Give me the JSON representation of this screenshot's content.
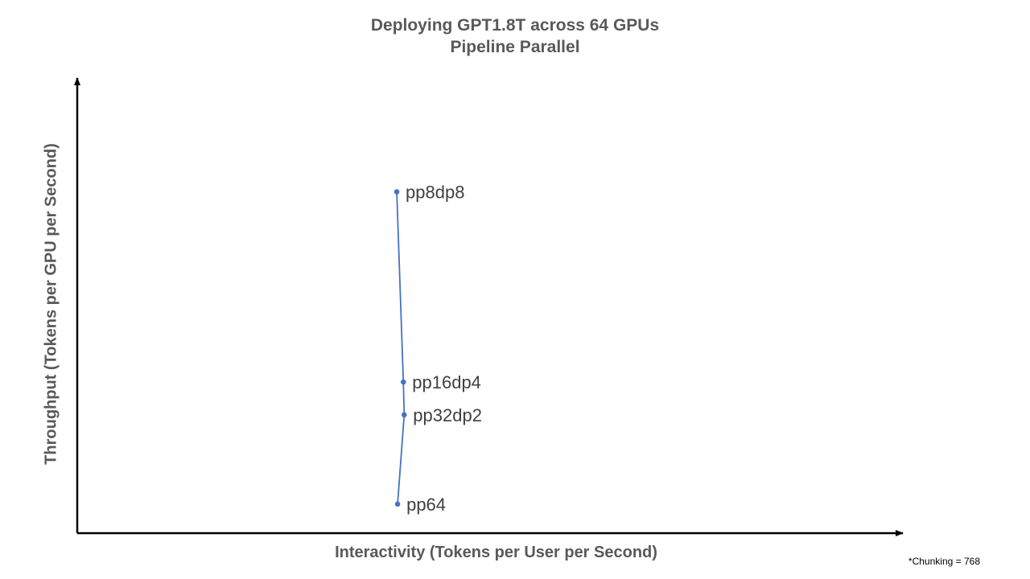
{
  "chart_data": {
    "type": "scatter",
    "title": "Deploying GPT1.8T across 64 GPUs",
    "subtitle": "Pipeline Parallel",
    "xlabel": "Interactivity (Tokens per User per Second)",
    "ylabel": "Throughput (Tokens per GPU per Second)",
    "xlim": [
      0,
      100
    ],
    "ylim": [
      0,
      100
    ],
    "grid": false,
    "axis_ticks": false,
    "connected": true,
    "line_color": "#4472C4",
    "marker_color": "#4472C4",
    "points": [
      {
        "label": "pp8dp8",
        "x": 38.7,
        "y": 75.0
      },
      {
        "label": "pp16dp4",
        "x": 39.5,
        "y": 33.2
      },
      {
        "label": "pp32dp2",
        "x": 39.6,
        "y": 26.0
      },
      {
        "label": "pp64",
        "x": 38.8,
        "y": 6.4
      }
    ],
    "footnote": "*Chunking = 768"
  }
}
